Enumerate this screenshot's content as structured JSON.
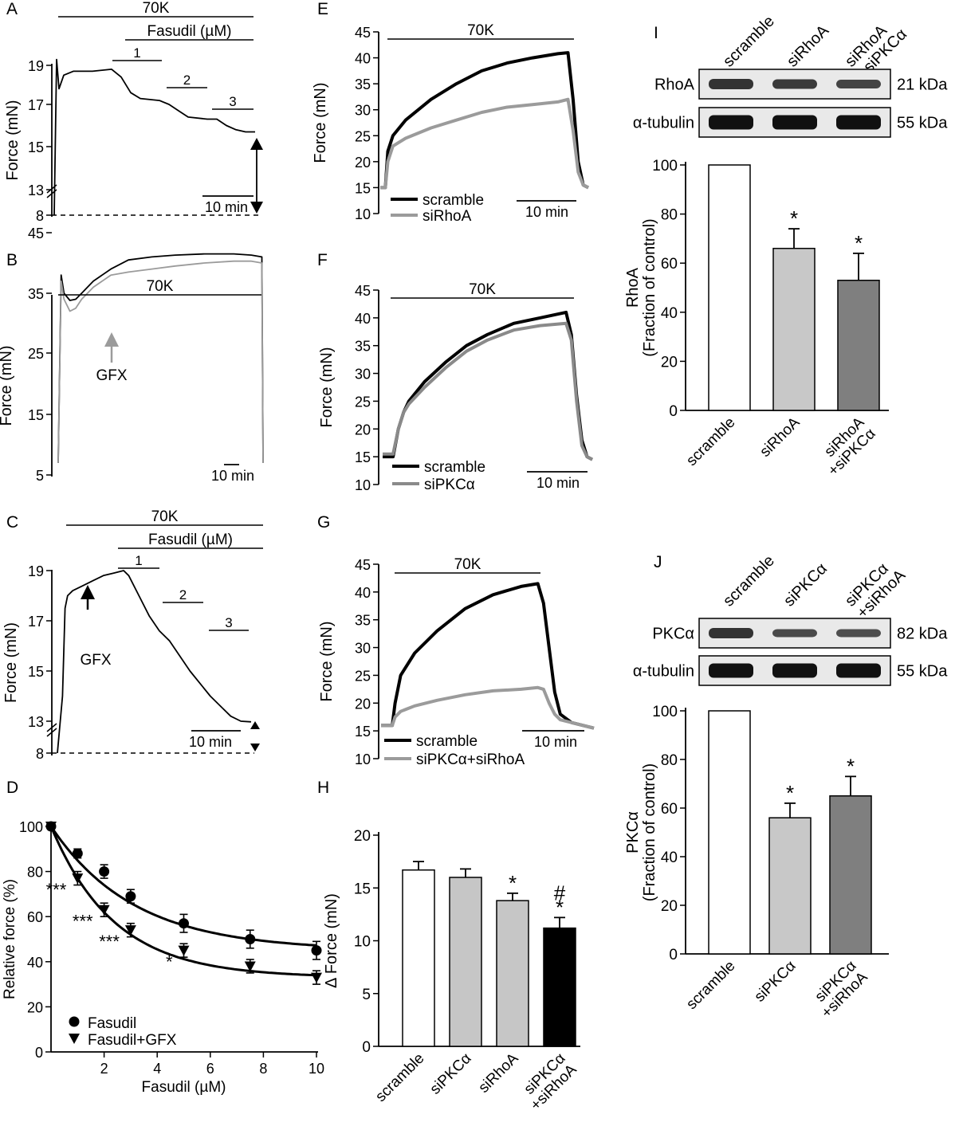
{
  "chart_data": [
    {
      "panel": "A",
      "type": "line",
      "ylabel": "Force (mN)",
      "y_ticks": [
        "8",
        "13",
        "15",
        "17",
        "19"
      ],
      "bars": [
        "70K",
        "Fasudil (µM)"
      ],
      "segments": [
        "1",
        "2",
        "3"
      ],
      "scale": "10 min",
      "series": [
        {
          "x": [
            0,
            0.5,
            1,
            2,
            4,
            6,
            8,
            12,
            14,
            16,
            18,
            22,
            24,
            26,
            28,
            32,
            34,
            36,
            38,
            40,
            42
          ],
          "values": [
            8,
            19.3,
            17.8,
            18.5,
            18.7,
            18.7,
            18.7,
            18.8,
            18.4,
            17.6,
            17.3,
            17.2,
            17.0,
            16.7,
            16.4,
            16.3,
            16.3,
            16.0,
            15.8,
            15.7,
            15.7
          ]
        }
      ]
    },
    {
      "panel": "B",
      "type": "line",
      "ylabel": "Force (mN)",
      "y_ticks": [
        "5",
        "15",
        "25",
        "35",
        "45"
      ],
      "bars": [
        "70K"
      ],
      "annotation": "GFX",
      "scale": "10 min",
      "series": [
        {
          "color": "#000000",
          "x": [
            0,
            0.5,
            1,
            2,
            3,
            4,
            6,
            9,
            12,
            16,
            20,
            25,
            30,
            33,
            34.8,
            35
          ],
          "values": [
            7,
            38,
            35,
            33.8,
            34,
            35,
            37,
            39,
            40.5,
            41,
            41.3,
            41.5,
            41.5,
            41.3,
            41,
            7
          ]
        },
        {
          "color": "#9b9b9b",
          "x": [
            0,
            0.5,
            1,
            2,
            3,
            4,
            6,
            9,
            12,
            16,
            20,
            25,
            30,
            33,
            34.8,
            35
          ],
          "values": [
            7,
            37,
            34,
            32,
            32.5,
            34,
            36,
            38,
            38.5,
            39,
            39.5,
            40,
            40.3,
            40.3,
            40,
            7
          ]
        }
      ]
    },
    {
      "panel": "C",
      "type": "line",
      "ylabel": "Force (mN)",
      "y_ticks": [
        "8",
        "13",
        "15",
        "17",
        "19"
      ],
      "bars": [
        "70K",
        "Fasudil (µM)"
      ],
      "segments": [
        "1",
        "2",
        "3"
      ],
      "annotation": "GFX",
      "scale": "10 min",
      "series": [
        {
          "x": [
            0,
            1,
            1.5,
            2,
            3,
            5,
            7,
            9,
            11,
            13,
            14,
            16,
            18,
            20,
            22,
            24,
            26,
            28,
            30,
            32,
            34,
            36,
            38
          ],
          "values": [
            8,
            14,
            17.5,
            18,
            18.2,
            18.4,
            18.6,
            18.8,
            18.9,
            19.0,
            18.8,
            18.0,
            17.2,
            16.6,
            16.2,
            15.6,
            15.0,
            14.5,
            14.0,
            13.6,
            13.2,
            13.0,
            12.9
          ]
        }
      ]
    },
    {
      "panel": "D",
      "type": "scatter",
      "xlabel": "Fasudil (µM)",
      "ylabel": "Relative force (%)",
      "xlim": [
        0,
        10
      ],
      "ylim": [
        0,
        100
      ],
      "x_ticks": [
        "2",
        "4",
        "6",
        "8",
        "10"
      ],
      "y_ticks": [
        "0",
        "20",
        "40",
        "60",
        "80",
        "100"
      ],
      "series": [
        {
          "name": "Fasudil",
          "marker": "circle",
          "x": [
            0,
            1,
            2,
            3,
            5,
            7.5,
            10
          ],
          "values": [
            100,
            88,
            80,
            69,
            57,
            50,
            45
          ],
          "errors": [
            0,
            2,
            3,
            3,
            4,
            4,
            4
          ]
        },
        {
          "name": "Fasudil+GFX",
          "marker": "triangle",
          "x": [
            0,
            1,
            2,
            3,
            5,
            7.5,
            10
          ],
          "values": [
            100,
            77,
            63,
            54,
            45,
            38,
            33
          ],
          "errors": [
            0,
            3,
            3,
            3,
            3,
            3,
            3
          ]
        }
      ],
      "significance": [
        {
          "x": 1,
          "label": "***"
        },
        {
          "x": 2,
          "label": "***"
        },
        {
          "x": 3,
          "label": "***"
        },
        {
          "x": 5,
          "label": "*"
        }
      ]
    },
    {
      "panel": "E",
      "type": "line",
      "ylabel": "Force (mN)",
      "y_ticks": [
        "10",
        "15",
        "20",
        "25",
        "30",
        "35",
        "40",
        "45"
      ],
      "bars": [
        "70K"
      ],
      "scale": "10 min",
      "series": [
        {
          "name": "scramble",
          "color": "#000000",
          "x": [
            0,
            1,
            1.5,
            2.5,
            5,
            10,
            15,
            20,
            25,
            30,
            35,
            37,
            38,
            39,
            40,
            41
          ],
          "values": [
            15,
            15,
            22,
            25,
            28,
            32,
            35,
            37.5,
            39,
            40,
            40.8,
            41,
            32,
            20,
            15.5,
            15
          ]
        },
        {
          "name": "siRhoA",
          "color": "#9b9b9b",
          "x": [
            0,
            1,
            1.5,
            2.5,
            5,
            10,
            15,
            20,
            25,
            30,
            35,
            37,
            38,
            39,
            40,
            41
          ],
          "values": [
            15,
            15,
            20,
            23,
            24.5,
            26.5,
            28,
            29.5,
            30.5,
            31,
            31.5,
            32,
            26,
            18,
            15.5,
            15
          ]
        }
      ]
    },
    {
      "panel": "F",
      "type": "line",
      "ylabel": "Force (mN)",
      "y_ticks": [
        "10",
        "15",
        "20",
        "25",
        "30",
        "35",
        "40",
        "45"
      ],
      "bars": [
        "70K"
      ],
      "scale": "10 min",
      "series": [
        {
          "name": "scramble",
          "color": "#000000",
          "x": [
            0,
            2,
            3,
            4,
            5,
            8,
            12,
            16,
            20,
            25,
            30,
            35,
            36,
            37,
            38,
            39,
            40
          ],
          "values": [
            15,
            15,
            20,
            23,
            25,
            28.5,
            32,
            35,
            37,
            39,
            40,
            41,
            37,
            26,
            18,
            15,
            14.5
          ]
        },
        {
          "name": "siPKCα",
          "color": "#8a8a8a",
          "x": [
            0,
            2,
            3,
            4,
            5,
            8,
            12,
            16,
            20,
            25,
            30,
            35,
            36,
            37,
            38,
            39,
            40
          ],
          "values": [
            15.5,
            15.5,
            20,
            23,
            24.5,
            27.5,
            31,
            34,
            36,
            37.8,
            38.6,
            39,
            36,
            25,
            17,
            15,
            14.5
          ]
        }
      ]
    },
    {
      "panel": "G",
      "type": "line",
      "ylabel": "Force (mN)",
      "y_ticks": [
        "10",
        "15",
        "20",
        "25",
        "30",
        "35",
        "40",
        "45"
      ],
      "bars": [
        "70K"
      ],
      "scale": "10 min",
      "series": [
        {
          "name": "scramble",
          "color": "#000000",
          "x": [
            0,
            2,
            2.5,
            3.5,
            6,
            10,
            15,
            20,
            25,
            28,
            29,
            30,
            31,
            32,
            34,
            36,
            38
          ],
          "values": [
            16,
            16,
            20,
            25,
            29,
            33,
            37,
            39.5,
            41,
            41.5,
            38,
            30,
            22,
            18,
            16.5,
            16,
            15.5
          ]
        },
        {
          "name": "siPKCα+siRhoA",
          "color": "#9b9b9b",
          "x": [
            0,
            2,
            2.5,
            3.5,
            6,
            10,
            15,
            20,
            25,
            28,
            29,
            30,
            31,
            32,
            34,
            36,
            38
          ],
          "values": [
            16,
            16,
            17.5,
            18.5,
            19.5,
            20.5,
            21.5,
            22.2,
            22.5,
            22.8,
            22.5,
            20,
            18,
            17,
            16.5,
            16,
            15.5
          ]
        }
      ]
    },
    {
      "panel": "H",
      "type": "bar",
      "ylabel": "Δ Force (mN)",
      "ylim": [
        0,
        20
      ],
      "y_ticks": [
        "0",
        "5",
        "10",
        "15",
        "20"
      ],
      "categories": [
        "scramble",
        "siPKCα",
        "siRhoA",
        "siPKCα\n+siRhoA"
      ],
      "values": [
        16.7,
        16.0,
        13.8,
        11.2
      ],
      "errors": [
        0.8,
        0.8,
        0.7,
        1.0
      ],
      "colors": [
        "#ffffff",
        "#c6c6c6",
        "#c6c6c6",
        "#000000"
      ],
      "significance": [
        "",
        "",
        "*",
        "#\n*"
      ]
    },
    {
      "panel": "I",
      "type": "bar",
      "ylabel": "RhoA\n(Fraction of control)",
      "ylim": [
        0,
        100
      ],
      "y_ticks": [
        "0",
        "20",
        "40",
        "60",
        "80",
        "100"
      ],
      "categories": [
        "scramble",
        "siRhoA",
        "siRhoA\n+siPKCα"
      ],
      "values": [
        100,
        66,
        53
      ],
      "errors": [
        0,
        8,
        11
      ],
      "colors": [
        "#ffffff",
        "#c8c8c8",
        "#7f7f7f"
      ],
      "significance": [
        "",
        "*",
        "*"
      ],
      "blot_lanes": [
        "scramble",
        "siRhoA",
        "siRhoA\n+siPKCα"
      ],
      "blot_rows": [
        {
          "label": "RhoA",
          "size": "21 kDa"
        },
        {
          "label": "α-tubulin",
          "size": "55 kDa"
        }
      ]
    },
    {
      "panel": "J",
      "type": "bar",
      "ylabel": "PKCα\n(Fraction of control)",
      "ylim": [
        0,
        100
      ],
      "y_ticks": [
        "0",
        "20",
        "40",
        "60",
        "80",
        "100"
      ],
      "categories": [
        "scramble",
        "siPKCα",
        "siPKCα\n+siRhoA"
      ],
      "values": [
        100,
        56,
        65
      ],
      "errors": [
        0,
        6,
        8
      ],
      "colors": [
        "#ffffff",
        "#c8c8c8",
        "#7f7f7f"
      ],
      "significance": [
        "",
        "*",
        "*"
      ],
      "blot_lanes": [
        "scramble",
        "siPKCα",
        "siPKCα\n+siRhoA"
      ],
      "blot_rows": [
        {
          "label": "PKCα",
          "size": "82 kDa"
        },
        {
          "label": "α-tubulin",
          "size": "55 kDa"
        }
      ]
    }
  ]
}
